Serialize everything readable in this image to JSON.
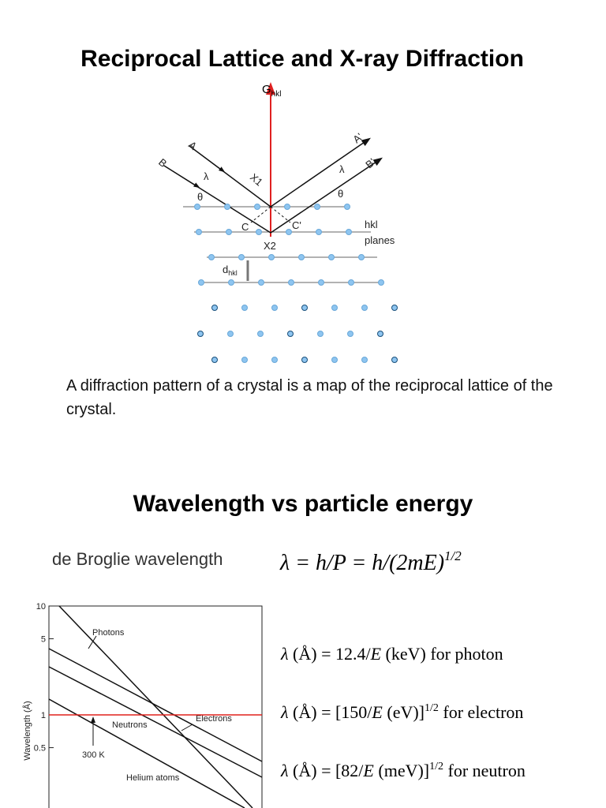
{
  "title": "Reciprocal Lattice and X-ray Diffraction",
  "diagram": {
    "g_label": [
      "G",
      "hkl"
    ],
    "labels": {
      "a": "A",
      "b": "B",
      "a_prime": "A'",
      "b_prime": "B'",
      "lambda": "λ",
      "theta": "θ",
      "x1": "X1",
      "x2": "X2",
      "c": "C",
      "c_prime": "C'",
      "hkl": "hkl",
      "planes": "planes",
      "d": [
        "d",
        "hkl"
      ]
    }
  },
  "caption": "A diffraction pattern of a crystal is a map of the reciprocal lattice of the crystal.",
  "section_title": "Wavelength vs particle energy",
  "de_broglie": {
    "label": "de Broglie wavelength",
    "formula": [
      "λ = h/P = h/(2mE)",
      "1/2"
    ]
  },
  "chart_data": {
    "type": "line",
    "ylabel": "Wavelength (Å)",
    "ylog": true,
    "ylim": [
      0.14,
      10
    ],
    "yticks": [
      10,
      5,
      1,
      0.5
    ],
    "hline": {
      "value": 1,
      "color": "#e0201b"
    },
    "labels": [
      "Photons",
      "Neutrons",
      "Electrons",
      "Helium atoms",
      "300 K"
    ]
  },
  "formulas": [
    [
      "λ",
      " (Å) = 12.4/",
      "E",
      " (keV) for photon"
    ],
    [
      "λ",
      " (Å) = [150/",
      "E",
      " (eV)]",
      "1/2",
      " for electron"
    ],
    [
      "λ",
      " (Å) = [82/",
      "E",
      " (meV)]",
      "1/2",
      " for neutron"
    ]
  ]
}
